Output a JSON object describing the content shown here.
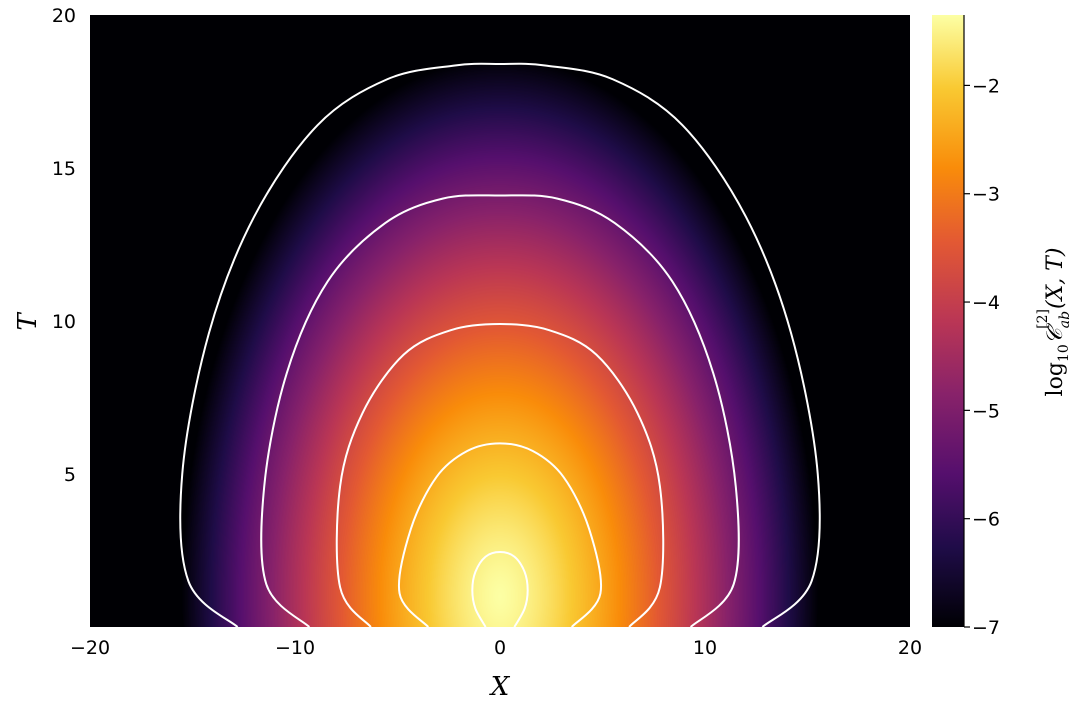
{
  "chart_data": {
    "type": "heatmap",
    "title": "",
    "xlabel": "X",
    "ylabel": "T",
    "colorbar_label": "log₁₀𝒞ᵃᵇ[2](X,T)",
    "colorbar_label_parts": {
      "prefix": "log",
      "sub10": "10",
      "main": "𝒞",
      "sub": "ab",
      "sup": "[2]",
      "args": "(X, T)"
    },
    "colormap": "inferno",
    "xlim": [
      -20,
      20
    ],
    "ylim": [
      0,
      20
    ],
    "clim": [
      -7,
      -1.35
    ],
    "grid": false,
    "x_ticks": [
      {
        "value": -20,
        "label": "−20"
      },
      {
        "value": -10,
        "label": "−10"
      },
      {
        "value": 0,
        "label": "0"
      },
      {
        "value": 10,
        "label": "10"
      },
      {
        "value": 20,
        "label": "20"
      }
    ],
    "y_ticks": [
      {
        "value": 5,
        "label": "5"
      },
      {
        "value": 10,
        "label": "10"
      },
      {
        "value": 15,
        "label": "15"
      },
      {
        "value": 20,
        "label": "20"
      }
    ],
    "colorbar_ticks": [
      {
        "value": -2,
        "label": "−2"
      },
      {
        "value": -3,
        "label": "−3"
      },
      {
        "value": -4,
        "label": "−4"
      },
      {
        "value": -5,
        "label": "−5"
      },
      {
        "value": -6,
        "label": "−6"
      },
      {
        "value": -7,
        "label": "−7"
      }
    ],
    "contours": [
      {
        "level": -2,
        "color": "#ffffff",
        "points": [
          [
            -0.7,
            0
          ],
          [
            -1.2,
            0.6
          ],
          [
            -1.35,
            1.2
          ],
          [
            -1.2,
            1.8
          ],
          [
            -0.7,
            2.3
          ],
          [
            0,
            2.45
          ],
          [
            0.7,
            2.3
          ],
          [
            1.2,
            1.8
          ],
          [
            1.35,
            1.2
          ],
          [
            1.2,
            0.6
          ],
          [
            0.7,
            0
          ]
        ]
      },
      {
        "level": -3,
        "color": "#ffffff",
        "points": [
          [
            -3.5,
            0
          ],
          [
            -4.9,
            1.1
          ],
          [
            -4.35,
            3.2
          ],
          [
            -3.1,
            4.9
          ],
          [
            -1.6,
            5.75
          ],
          [
            0,
            6.0
          ],
          [
            1.6,
            5.75
          ],
          [
            3.1,
            4.9
          ],
          [
            4.35,
            3.2
          ],
          [
            4.9,
            1.1
          ],
          [
            3.5,
            0
          ]
        ]
      },
      {
        "level": -4,
        "color": "#ffffff",
        "points": [
          [
            -6.3,
            0
          ],
          [
            -7.8,
            1.3
          ],
          [
            -7.8,
            4.6
          ],
          [
            -6.7,
            7.0
          ],
          [
            -4.7,
            8.9
          ],
          [
            -2.4,
            9.7
          ],
          [
            0,
            9.9
          ],
          [
            2.4,
            9.7
          ],
          [
            4.7,
            8.9
          ],
          [
            6.7,
            7.0
          ],
          [
            7.8,
            4.6
          ],
          [
            7.8,
            1.3
          ],
          [
            6.3,
            0
          ]
        ]
      },
      {
        "level": -5,
        "color": "#ffffff",
        "points": [
          [
            -9.3,
            0
          ],
          [
            -11.4,
            1.4
          ],
          [
            -11.5,
            4.6
          ],
          [
            -10.4,
            8.3
          ],
          [
            -8.4,
            11.3
          ],
          [
            -5.6,
            13.2
          ],
          [
            -2.8,
            14.0
          ],
          [
            0,
            14.1
          ],
          [
            2.8,
            14.0
          ],
          [
            5.6,
            13.2
          ],
          [
            8.4,
            11.3
          ],
          [
            10.4,
            8.3
          ],
          [
            11.5,
            4.6
          ],
          [
            11.4,
            1.4
          ],
          [
            9.3,
            0
          ]
        ]
      },
      {
        "level": -6,
        "color": "#ffffff",
        "points": [
          [
            -12.8,
            0
          ],
          [
            -15.2,
            1.5
          ],
          [
            -15.5,
            5.0
          ],
          [
            -14.2,
            9.6
          ],
          [
            -12.0,
            13.4
          ],
          [
            -8.9,
            16.4
          ],
          [
            -5.5,
            17.9
          ],
          [
            -2.2,
            18.35
          ],
          [
            0,
            18.4
          ],
          [
            2.2,
            18.35
          ],
          [
            5.5,
            17.9
          ],
          [
            8.9,
            16.4
          ],
          [
            12.0,
            13.4
          ],
          [
            14.2,
            9.6
          ],
          [
            15.5,
            5.0
          ],
          [
            15.2,
            1.5
          ],
          [
            12.8,
            0
          ]
        ]
      }
    ]
  }
}
